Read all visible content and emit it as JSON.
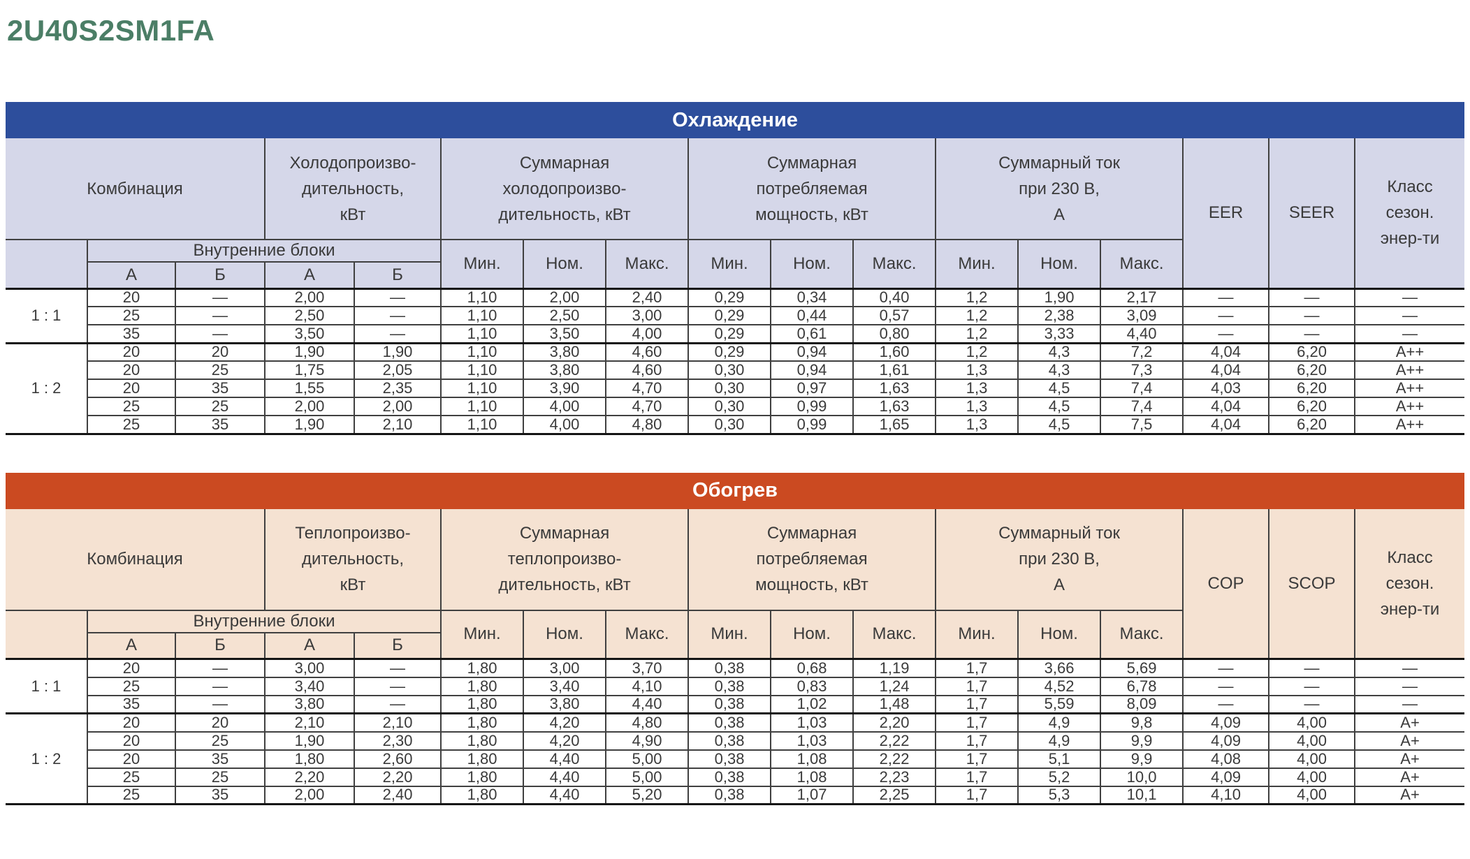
{
  "page_title": "2U40S2SM1FA",
  "colors": {
    "title_green": "#4b7e66",
    "cooling_accent": "#2d4e9c",
    "cooling_cell_bg": "#d5d7e9",
    "heating_accent": "#cb4a21",
    "heating_cell_bg": "#f5e2d2",
    "border": "#404040",
    "text": "#3a3a3a"
  },
  "tables": [
    {
      "title": "Охлаждение",
      "accent": "#2d4e9c",
      "cell_bg": "#d5d7e9",
      "headers": {
        "combination": "Комбинация",
        "capacity": "Холодопроизво-\nдительность,\nкВт",
        "total_capacity": "Суммарная\nхолодопроизво-\nдительность, кВт",
        "total_power": "Суммарная\nпотребляемая\nмощность, кВт",
        "total_current": "Суммарный ток\nпри 230 В,\nА",
        "efficiency": "EER",
        "seasonal_efficiency": "SEER",
        "energy_class": "Класс\nсезон.\nэнер-ти",
        "indoor_units": "Внутренние блоки",
        "col_a1": "А",
        "col_b1": "Б",
        "col_a2": "А",
        "col_b2": "Б",
        "min": "Мин.",
        "nom": "Ном.",
        "max": "Макс."
      },
      "groups": [
        {
          "ratio": "1 : 1",
          "rows": [
            [
              "20",
              "—",
              "2,00",
              "—",
              "1,10",
              "2,00",
              "2,40",
              "0,29",
              "0,34",
              "0,40",
              "1,2",
              "1,90",
              "2,17",
              "—",
              "—",
              "—"
            ],
            [
              "25",
              "—",
              "2,50",
              "—",
              "1,10",
              "2,50",
              "3,00",
              "0,29",
              "0,44",
              "0,57",
              "1,2",
              "2,38",
              "3,09",
              "—",
              "—",
              "—"
            ],
            [
              "35",
              "—",
              "3,50",
              "—",
              "1,10",
              "3,50",
              "4,00",
              "0,29",
              "0,61",
              "0,80",
              "1,2",
              "3,33",
              "4,40",
              "—",
              "—",
              "—"
            ]
          ]
        },
        {
          "ratio": "1 : 2",
          "rows": [
            [
              "20",
              "20",
              "1,90",
              "1,90",
              "1,10",
              "3,80",
              "4,60",
              "0,29",
              "0,94",
              "1,60",
              "1,2",
              "4,3",
              "7,2",
              "4,04",
              "6,20",
              "A++"
            ],
            [
              "20",
              "25",
              "1,75",
              "2,05",
              "1,10",
              "3,80",
              "4,60",
              "0,30",
              "0,94",
              "1,61",
              "1,3",
              "4,3",
              "7,3",
              "4,04",
              "6,20",
              "A++"
            ],
            [
              "20",
              "35",
              "1,55",
              "2,35",
              "1,10",
              "3,90",
              "4,70",
              "0,30",
              "0,97",
              "1,63",
              "1,3",
              "4,5",
              "7,4",
              "4,03",
              "6,20",
              "A++"
            ],
            [
              "25",
              "25",
              "2,00",
              "2,00",
              "1,10",
              "4,00",
              "4,70",
              "0,30",
              "0,99",
              "1,63",
              "1,3",
              "4,5",
              "7,4",
              "4,04",
              "6,20",
              "A++"
            ],
            [
              "25",
              "35",
              "1,90",
              "2,10",
              "1,10",
              "4,00",
              "4,80",
              "0,30",
              "0,99",
              "1,65",
              "1,3",
              "4,5",
              "7,5",
              "4,04",
              "6,20",
              "A++"
            ]
          ]
        }
      ]
    },
    {
      "title": "Обогрев",
      "accent": "#cb4a21",
      "cell_bg": "#f5e2d2",
      "headers": {
        "combination": "Комбинация",
        "capacity": "Теплопроизво-\nдительность,\nкВт",
        "total_capacity": "Суммарная\nтеплопроизво-\nдительность, кВт",
        "total_power": "Суммарная\nпотребляемая\nмощность, кВт",
        "total_current": "Суммарный ток\nпри 230 В,\nА",
        "efficiency": "COP",
        "seasonal_efficiency": "SCOP",
        "energy_class": "Класс\nсезон.\nэнер-ти",
        "indoor_units": "Внутренние блоки",
        "col_a1": "А",
        "col_b1": "Б",
        "col_a2": "А",
        "col_b2": "Б",
        "min": "Мин.",
        "nom": "Ном.",
        "max": "Макс."
      },
      "groups": [
        {
          "ratio": "1 : 1",
          "rows": [
            [
              "20",
              "—",
              "3,00",
              "—",
              "1,80",
              "3,00",
              "3,70",
              "0,38",
              "0,68",
              "1,19",
              "1,7",
              "3,66",
              "5,69",
              "—",
              "—",
              "—"
            ],
            [
              "25",
              "—",
              "3,40",
              "—",
              "1,80",
              "3,40",
              "4,10",
              "0,38",
              "0,83",
              "1,24",
              "1,7",
              "4,52",
              "6,78",
              "—",
              "—",
              "—"
            ],
            [
              "35",
              "—",
              "3,80",
              "—",
              "1,80",
              "3,80",
              "4,40",
              "0,38",
              "1,02",
              "1,48",
              "1,7",
              "5,59",
              "8,09",
              "—",
              "—",
              "—"
            ]
          ]
        },
        {
          "ratio": "1 : 2",
          "rows": [
            [
              "20",
              "20",
              "2,10",
              "2,10",
              "1,80",
              "4,20",
              "4,80",
              "0,38",
              "1,03",
              "2,20",
              "1,7",
              "4,9",
              "9,8",
              "4,09",
              "4,00",
              "A+"
            ],
            [
              "20",
              "25",
              "1,90",
              "2,30",
              "1,80",
              "4,20",
              "4,90",
              "0,38",
              "1,03",
              "2,22",
              "1,7",
              "4,9",
              "9,9",
              "4,09",
              "4,00",
              "A+"
            ],
            [
              "20",
              "35",
              "1,80",
              "2,60",
              "1,80",
              "4,40",
              "5,00",
              "0,38",
              "1,08",
              "2,22",
              "1,7",
              "5,1",
              "9,9",
              "4,08",
              "4,00",
              "A+"
            ],
            [
              "25",
              "25",
              "2,20",
              "2,20",
              "1,80",
              "4,40",
              "5,00",
              "0,38",
              "1,08",
              "2,23",
              "1,7",
              "5,2",
              "10,0",
              "4,09",
              "4,00",
              "A+"
            ],
            [
              "25",
              "35",
              "2,00",
              "2,40",
              "1,80",
              "4,40",
              "5,20",
              "0,38",
              "1,07",
              "2,25",
              "1,7",
              "5,3",
              "10,1",
              "4,10",
              "4,00",
              "A+"
            ]
          ]
        }
      ]
    }
  ]
}
